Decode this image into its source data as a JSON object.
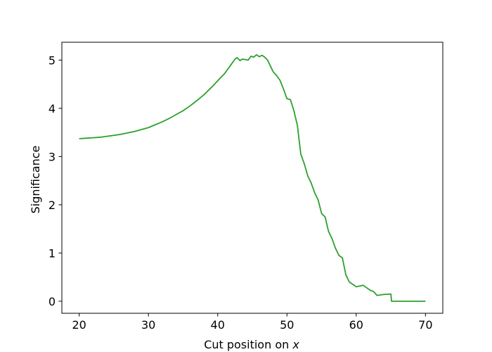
{
  "chart_data": {
    "type": "line",
    "title": "",
    "xlabel": "Cut position on ",
    "xlabel_var": "x",
    "ylabel": "Significance",
    "xlim": [
      17.5,
      72.5
    ],
    "ylim": [
      -0.25,
      5.37
    ],
    "xticks": [
      20,
      30,
      40,
      50,
      60,
      70
    ],
    "yticks": [
      0,
      1,
      2,
      3,
      4,
      5
    ],
    "grid": false,
    "legend": "none",
    "series": [
      {
        "color": "#2ca02c",
        "points": [
          [
            20,
            3.37
          ],
          [
            21,
            3.38
          ],
          [
            22,
            3.39
          ],
          [
            23,
            3.4
          ],
          [
            24,
            3.42
          ],
          [
            25,
            3.44
          ],
          [
            26,
            3.46
          ],
          [
            27,
            3.49
          ],
          [
            28,
            3.52
          ],
          [
            29,
            3.56
          ],
          [
            30,
            3.6
          ],
          [
            31,
            3.66
          ],
          [
            32,
            3.72
          ],
          [
            33,
            3.79
          ],
          [
            34,
            3.87
          ],
          [
            35,
            3.95
          ],
          [
            36,
            4.05
          ],
          [
            37,
            4.16
          ],
          [
            38,
            4.28
          ],
          [
            39,
            4.42
          ],
          [
            40,
            4.57
          ],
          [
            41,
            4.72
          ],
          [
            42,
            4.92
          ],
          [
            42.5,
            5.02
          ],
          [
            42.8,
            5.05
          ],
          [
            43.2,
            4.99
          ],
          [
            43.6,
            5.02
          ],
          [
            44,
            5.01
          ],
          [
            44.4,
            5.0
          ],
          [
            44.8,
            5.08
          ],
          [
            45.2,
            5.06
          ],
          [
            45.6,
            5.11
          ],
          [
            46,
            5.07
          ],
          [
            46.4,
            5.1
          ],
          [
            46.8,
            5.06
          ],
          [
            47.2,
            5.0
          ],
          [
            47.6,
            4.88
          ],
          [
            48,
            4.76
          ],
          [
            48.5,
            4.68
          ],
          [
            49,
            4.58
          ],
          [
            49.5,
            4.4
          ],
          [
            50,
            4.2
          ],
          [
            50.5,
            4.18
          ],
          [
            51,
            3.95
          ],
          [
            51.5,
            3.65
          ],
          [
            52,
            3.05
          ],
          [
            52.5,
            2.85
          ],
          [
            53,
            2.6
          ],
          [
            53.5,
            2.45
          ],
          [
            54,
            2.25
          ],
          [
            54.5,
            2.1
          ],
          [
            55,
            1.82
          ],
          [
            55.5,
            1.75
          ],
          [
            56,
            1.45
          ],
          [
            56.5,
            1.3
          ],
          [
            57,
            1.1
          ],
          [
            57.5,
            0.95
          ],
          [
            58,
            0.9
          ],
          [
            58.5,
            0.55
          ],
          [
            59,
            0.4
          ],
          [
            59.5,
            0.35
          ],
          [
            60,
            0.3
          ],
          [
            61,
            0.33
          ],
          [
            61.5,
            0.28
          ],
          [
            62,
            0.23
          ],
          [
            62.5,
            0.2
          ],
          [
            63,
            0.12
          ],
          [
            64,
            0.14
          ],
          [
            65,
            0.15
          ],
          [
            65.1,
            0.0
          ],
          [
            70,
            0.0
          ]
        ]
      }
    ]
  }
}
